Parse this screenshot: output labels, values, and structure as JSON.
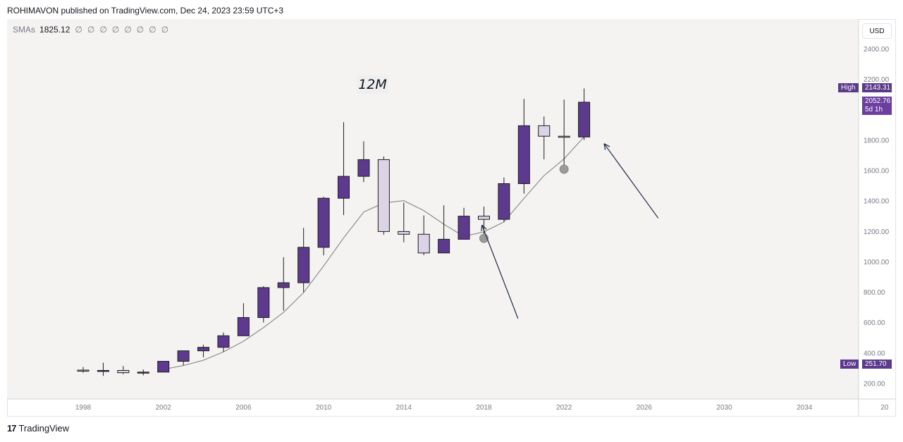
{
  "header": {
    "text": "ROHIMAVON published on TradingView.com, Dec 24, 2023 23:59 UTC+3"
  },
  "legend": {
    "name": "SMAs",
    "value": "1825.12",
    "empty_marks": [
      "∅",
      "∅",
      "∅",
      "∅",
      "∅",
      "∅",
      "∅",
      "∅"
    ]
  },
  "timeframe": "12M",
  "currency": "USD",
  "tags": {
    "high_label": "High",
    "high_value": "2143.31",
    "last_value": "2052.76",
    "last_countdown": "5d 1h",
    "low_label": "Low",
    "low_value": "251.70"
  },
  "footer": {
    "logo_glyph": "17",
    "brand": "TradingView"
  },
  "colors": {
    "up": "#5d3a8e",
    "down": "#dcd3e6",
    "background": "#f4f3f1",
    "sma": "#7b7b7b",
    "arrow": "#1f2a44"
  },
  "chart_data": {
    "type": "candlestick",
    "x_axis": {
      "ticks": [
        "1998",
        "2002",
        "2006",
        "2010",
        "2014",
        "2018",
        "2022",
        "2026",
        "2030",
        "2034",
        "20"
      ],
      "range": [
        1994.2,
        2036.7
      ]
    },
    "y_axis": {
      "ticks": [
        "2400.00",
        "2200.00",
        "1800.00",
        "1600.00",
        "1400.00",
        "1200.00",
        "1000.00",
        "800.00",
        "600.00",
        "400.00",
        "200.00"
      ],
      "range": [
        100,
        2600
      ],
      "scale": "linear"
    },
    "series": [
      {
        "type": "candles",
        "candles": [
          {
            "year": 1998,
            "open": 290,
            "high": 311,
            "low": 273,
            "close": 287
          },
          {
            "year": 1999,
            "open": 287,
            "high": 339,
            "low": 252,
            "close": 288
          },
          {
            "year": 2000,
            "open": 288,
            "high": 317,
            "low": 263,
            "close": 273
          },
          {
            "year": 2001,
            "open": 273,
            "high": 294,
            "low": 256,
            "close": 277
          },
          {
            "year": 2002,
            "open": 277,
            "high": 350,
            "low": 277,
            "close": 348
          },
          {
            "year": 2003,
            "open": 348,
            "high": 418,
            "low": 320,
            "close": 417
          },
          {
            "year": 2004,
            "open": 417,
            "high": 457,
            "low": 374,
            "close": 440
          },
          {
            "year": 2005,
            "open": 440,
            "high": 538,
            "low": 411,
            "close": 516
          },
          {
            "year": 2006,
            "open": 516,
            "high": 730,
            "low": 516,
            "close": 636
          },
          {
            "year": 2007,
            "open": 636,
            "high": 842,
            "low": 603,
            "close": 833
          },
          {
            "year": 2008,
            "open": 833,
            "high": 1033,
            "low": 681,
            "close": 865
          },
          {
            "year": 2009,
            "open": 865,
            "high": 1226,
            "low": 803,
            "close": 1098
          },
          {
            "year": 2010,
            "open": 1098,
            "high": 1431,
            "low": 1045,
            "close": 1421
          },
          {
            "year": 2011,
            "open": 1421,
            "high": 1921,
            "low": 1310,
            "close": 1565
          },
          {
            "year": 2012,
            "open": 1565,
            "high": 1796,
            "low": 1527,
            "close": 1675
          },
          {
            "year": 2013,
            "open": 1675,
            "high": 1696,
            "low": 1181,
            "close": 1202
          },
          {
            "year": 2014,
            "open": 1202,
            "high": 1392,
            "low": 1131,
            "close": 1184
          },
          {
            "year": 2015,
            "open": 1184,
            "high": 1308,
            "low": 1046,
            "close": 1061
          },
          {
            "year": 2016,
            "open": 1061,
            "high": 1375,
            "low": 1061,
            "close": 1151
          },
          {
            "year": 2017,
            "open": 1151,
            "high": 1358,
            "low": 1151,
            "close": 1303
          },
          {
            "year": 2018,
            "open": 1303,
            "high": 1366,
            "low": 1160,
            "close": 1282
          },
          {
            "year": 2019,
            "open": 1282,
            "high": 1557,
            "low": 1266,
            "close": 1517
          },
          {
            "year": 2020,
            "open": 1517,
            "high": 2075,
            "low": 1451,
            "close": 1898
          },
          {
            "year": 2021,
            "open": 1898,
            "high": 1959,
            "low": 1677,
            "close": 1829
          },
          {
            "year": 2022,
            "open": 1829,
            "high": 2070,
            "low": 1615,
            "close": 1824
          },
          {
            "year": 2023,
            "open": 1824,
            "high": 2143.31,
            "low": 1804,
            "close": 2052.76
          }
        ]
      },
      {
        "type": "line",
        "points": [
          {
            "year": 2002,
            "value": 295
          },
          {
            "year": 2003,
            "value": 320
          },
          {
            "year": 2004,
            "value": 355
          },
          {
            "year": 2005,
            "value": 410
          },
          {
            "year": 2006,
            "value": 480
          },
          {
            "year": 2007,
            "value": 570
          },
          {
            "year": 2008,
            "value": 670
          },
          {
            "year": 2009,
            "value": 800
          },
          {
            "year": 2010,
            "value": 975
          },
          {
            "year": 2011,
            "value": 1160
          },
          {
            "year": 2012,
            "value": 1330
          },
          {
            "year": 2013,
            "value": 1390
          },
          {
            "year": 2014,
            "value": 1405
          },
          {
            "year": 2015,
            "value": 1340
          },
          {
            "year": 2016,
            "value": 1250
          },
          {
            "year": 2017,
            "value": 1170
          },
          {
            "year": 2018,
            "value": 1200
          },
          {
            "year": 2019,
            "value": 1265
          },
          {
            "year": 2020,
            "value": 1420
          },
          {
            "year": 2021,
            "value": 1570
          },
          {
            "year": 2022,
            "value": 1680
          },
          {
            "year": 2023,
            "value": 1825.12
          }
        ]
      }
    ],
    "markers": [
      {
        "year": 2018,
        "value": 1157
      },
      {
        "year": 2022,
        "value": 1612
      }
    ],
    "arrows": [
      {
        "from": {
          "year": 2019.7,
          "value": 630
        },
        "to": {
          "year": 2017.9,
          "value": 1245
        }
      },
      {
        "from": {
          "year": 2026.7,
          "value": 1290
        },
        "to": {
          "year": 2024.0,
          "value": 1780
        }
      }
    ]
  }
}
